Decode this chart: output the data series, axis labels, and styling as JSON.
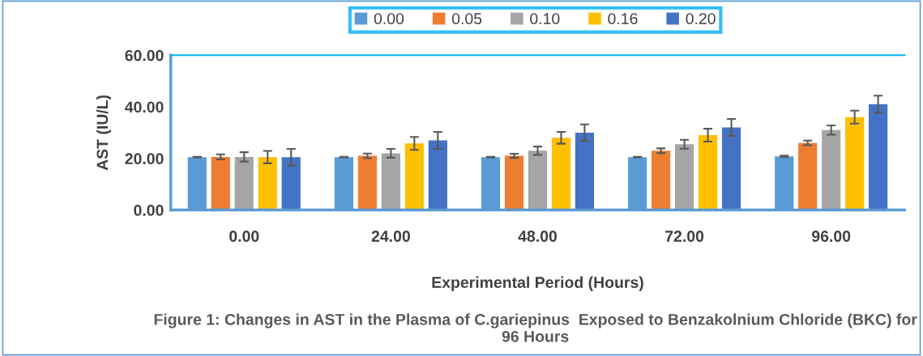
{
  "chart_data": {
    "type": "bar",
    "xlabel": "Experimental Period (Hours)",
    "ylabel": "AST (IU/L)",
    "categories": [
      "0.00",
      "24.00",
      "48.00",
      "72.00",
      "96.00"
    ],
    "ylim": [
      0,
      60
    ],
    "yticks": [
      {
        "value": 0,
        "label": "0.00"
      },
      {
        "value": 20,
        "label": "20.00"
      },
      {
        "value": 40,
        "label": "40.00"
      },
      {
        "value": 60,
        "label": "60.00"
      }
    ],
    "grid": false,
    "legend": "top",
    "series": [
      {
        "name": "0.00",
        "color": "#5b9bd5",
        "values": [
          20.5,
          20.5,
          20.5,
          20.5,
          20.8
        ],
        "errors": [
          0.1,
          0.1,
          0.1,
          0.1,
          0.3
        ]
      },
      {
        "name": "0.05",
        "color": "#ed7d31",
        "values": [
          20.6,
          21,
          21,
          23,
          26
        ],
        "errors": [
          1,
          0.9,
          0.8,
          0.9,
          0.9
        ]
      },
      {
        "name": "0.10",
        "color": "#a5a5a5",
        "values": [
          20.6,
          22,
          23,
          25.5,
          31
        ],
        "errors": [
          1.8,
          1.7,
          1.6,
          1.7,
          1.8
        ]
      },
      {
        "name": "0.16",
        "color": "#ffc000",
        "values": [
          20.5,
          25.8,
          28,
          29,
          36
        ],
        "errors": [
          2.4,
          2.5,
          2.3,
          2.5,
          2.5
        ]
      },
      {
        "name": "0.20",
        "color": "#4472c4",
        "values": [
          20.5,
          27,
          30,
          32,
          41
        ],
        "errors": [
          3.2,
          3.3,
          3.2,
          3.3,
          3.3
        ]
      }
    ],
    "annotations": [
      "Figure 1: Changes in AST in the Plasma of C.gariepinus  Exposed to Benzakolnium Chloride (BKC) for 96 Hours"
    ]
  }
}
